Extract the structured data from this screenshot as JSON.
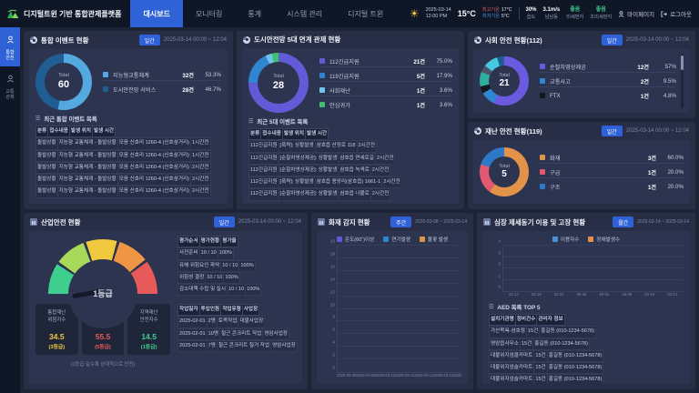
{
  "header": {
    "logo_title": "디지털트윈 기반 통합관제플랫폼",
    "nav": [
      {
        "label": "대시보드",
        "active": true
      },
      {
        "label": "모니터링",
        "active": false
      },
      {
        "label": "통계",
        "active": false
      },
      {
        "label": "시스템 관리",
        "active": false
      },
      {
        "label": "디지털 트윈",
        "active": false
      }
    ],
    "datetime": {
      "date": "2025-03-14",
      "time": "12:00 PM"
    },
    "weather": {
      "temp": "15°C",
      "high_label": "최고기온",
      "high": "17°C",
      "low_label": "최저기온",
      "low": "5°C",
      "humidity": "30%",
      "humidity_label": "습도",
      "wind": "3.1m/s",
      "wind_label": "남남동",
      "pm10_status": "좋음",
      "pm10_label": "미세먼지",
      "pm25_status": "좋음",
      "pm25_label": "초미세먼지",
      "good_color": "#3ecf8e"
    },
    "mypage_label": "마이페이지",
    "logout_label": "로그아웃"
  },
  "sidebar": {
    "items": [
      {
        "label": "통합안전",
        "active": true
      },
      {
        "label": "교통관제",
        "active": false
      }
    ]
  },
  "panels": {
    "integrated": {
      "title": "통합 이벤트 현황",
      "badge": "일간",
      "period": "2025-03-14 00:00 ~ 12:04",
      "total_label": "Total",
      "total": "60",
      "legend": [
        {
          "label": "지능형교통체계",
          "count": "32건",
          "pct": "53.3%",
          "color": "#54a9e0"
        },
        {
          "label": "도시안전망 서비스",
          "count": "28건",
          "pct": "46.7%",
          "color": "#1f5d93"
        }
      ],
      "list_title": "최근 통합 이벤트 목록",
      "table": {
        "headers": [
          "분류",
          "접수내용",
          "발생 위치",
          "발생 시간"
        ],
        "rows": [
          [
            "돌발상황",
            "지능형 교통체계 - 돌발상황",
            "모음 신호리 1260-4 (신호삼거리)",
            "1시간전"
          ],
          [
            "돌발상황",
            "지능형 교통체계 - 돌발상황",
            "모음 신호리 1260-4 (신호삼거리)",
            "1시간전"
          ],
          [
            "돌발상황",
            "지능형 교통체계 - 돌발상황",
            "모음 신호리 1260-4 (신호삼거리)",
            "2시간전"
          ],
          [
            "돌발상황",
            "지능형 교통체계 - 돌발상황",
            "모음 신호리 1260-4 (신호삼거리)",
            "2시간전"
          ],
          [
            "돌발상황",
            "지능형 교통체계 - 돌발상황",
            "모음 신호리 1260-4 (신호삼거리)",
            "2시간전"
          ]
        ]
      }
    },
    "citynet": {
      "title": "도시안전망 5대 연계 관제 현황",
      "total_label": "Total",
      "total": "28",
      "legend": [
        {
          "label": "112긴급지원",
          "count": "21건",
          "pct": "75.0%",
          "color": "#625bd8"
        },
        {
          "label": "119긴급지원",
          "count": "5건",
          "pct": "17.9%",
          "color": "#2e86d1"
        },
        {
          "label": "사회재난",
          "count": "1건",
          "pct": "3.6%",
          "color": "#6fc3ea"
        },
        {
          "label": "안심귀가",
          "count": "1건",
          "pct": "3.6%",
          "color": "#3fbf6e"
        }
      ],
      "list_title": "최근 5대 이벤트 목록",
      "table": {
        "headers": [
          "분류",
          "접수내용",
          "발생 위치",
          "발생 시간"
        ],
        "rows": [
          [
            "112긴급지원",
            "[폭력]: 상황발생",
            "삼호읍 산정로 118",
            "2시간전"
          ],
          [
            "112긴급지원",
            "[순찰차영상제공]: 상황발생",
            "삼호읍 연세로길",
            "2시간전"
          ],
          [
            "112긴급지원",
            "[순찰차영상제공]: 상황발생",
            "삼호읍 녹색로",
            "2시간전"
          ],
          [
            "112긴급지원",
            "[폭력]: 상황발생",
            "삼호읍 용앙리(삼호읍) 1661-1",
            "2시간전"
          ],
          [
            "112긴급지원",
            "[순찰차영상제공]: 상황발생",
            "삼호읍 나불로",
            "2시간전"
          ]
        ]
      }
    },
    "social112": {
      "title": "사회 안전 현황(112)",
      "badge": "일간",
      "period": "2025-03-14 00:00 ~ 12:04",
      "total_label": "Total",
      "total": "21",
      "legend": [
        {
          "label": "순찰차영상제공",
          "count": "12건",
          "pct": "57%",
          "color": "#6a5ae0"
        },
        {
          "label": "교통사고",
          "count": "2건",
          "pct": "9.5%",
          "color": "#2e86d1"
        },
        {
          "label": "FTX",
          "count": "1건",
          "pct": "4.8%",
          "color": "#15181f"
        }
      ]
    },
    "disaster119": {
      "title": "재난 안전 현황(119)",
      "badge": "일간",
      "period": "2025-03-14 00:00 ~ 12:04",
      "total_label": "Total",
      "total": "5",
      "legend": [
        {
          "label": "화재",
          "count": "3건",
          "pct": "60.0%",
          "color": "#e3924a"
        },
        {
          "label": "구급",
          "count": "1건",
          "pct": "20.0%",
          "color": "#e0596e"
        },
        {
          "label": "구조",
          "count": "1건",
          "pct": "20.0%",
          "color": "#2e78c8"
        }
      ]
    },
    "industry": {
      "title": "산업안전 현황",
      "badge": "일간",
      "period": "2025-03-14 00:00 ~ 12:04",
      "gauge_label": "1등급",
      "eval_table": {
        "headers": [
          "평가순서",
          "평가현황",
          "평가율"
        ],
        "rows": [
          [
            "사전준비",
            "10 / 10",
            "100%"
          ],
          [
            "유해 위험요인 파악",
            "10 / 10",
            "100%"
          ],
          [
            "위험성 결정",
            "10 / 10",
            "100%"
          ],
          [
            "감소대책 수립 및 실시",
            "10 / 10",
            "100%"
          ]
        ]
      },
      "cards": [
        {
          "label": "통합재난\n위험지수",
          "value": "34.5",
          "grade": "(3등급)",
          "color": "#f0c93f"
        },
        {
          "label": "산업안전\n위험지수",
          "value": "55.5",
          "grade": "(5등급)",
          "color": "#e85a5a"
        },
        {
          "label": "지역재난\n안전지수",
          "value": "14.5",
          "grade": "(1등급)",
          "color": "#3ecf8e"
        }
      ],
      "note": "(1등급 일수록 상대적으로 안전)",
      "work_table": {
        "headers": [
          "작업일자",
          "투입인원",
          "작업유형",
          "사업장"
        ],
        "rows": [
          [
            "2025-02-01",
            "2명",
            "토목작업",
            "대불사업장"
          ],
          [
            "2025-02-01",
            "10명",
            "철근 콘크리트 작업",
            "영암사업장"
          ],
          [
            "2025-02-01",
            "7명",
            "철근 콘크리트 철거 작업",
            "영암사업장"
          ]
        ]
      }
    },
    "fire": {
      "title": "화재 감지 현황",
      "badge": "주간",
      "period": "2025-03-08 ~ 2025-03-14"
    },
    "aed": {
      "title": "심장 제세동기 이용 및 고장 현황",
      "badge": "월간",
      "period": "2025-02-14 ~ 2025-03-14",
      "list_title": "AED 목록 TOP 5",
      "table": {
        "headers": [
          "설치기관명",
          "정비건수",
          "관리자 정보"
        ],
        "rows": [
          [
            "가산목욕-삼호점",
            "15건",
            "홍길동 (010-1234-5678)"
          ],
          [
            "영암읍사무소",
            "15건",
            "홍길동 (010-1234-5678)"
          ],
          [
            "대불위지엄클카마트",
            "15건",
            "홍길동 (010-1234-5678)"
          ],
          [
            "대불위지엄슬카마트",
            "15건",
            "홍길동 (010-1234-5678)"
          ],
          [
            "대불위지엄슬카마트",
            "15건",
            "홍길동 (010-1234-5678)"
          ]
        ]
      }
    }
  },
  "chart_data": {
    "integrated": {
      "type": "pie",
      "total": 60,
      "labels": [
        "지능형교통체계",
        "도시안전망 서비스"
      ],
      "segments": [
        {
          "v": 32,
          "c": "#54a9e0"
        },
        {
          "v": 28,
          "c": "#1f5d93"
        }
      ]
    },
    "citynet": {
      "type": "pie",
      "total": 28,
      "labels": [
        "112긴급지원",
        "119긴급지원",
        "사회재난",
        "안심귀가"
      ],
      "segments": [
        {
          "v": 21,
          "c": "#625bd8"
        },
        {
          "v": 5,
          "c": "#2e86d1"
        },
        {
          "v": 1,
          "c": "#6fc3ea"
        },
        {
          "v": 1,
          "c": "#3fbf6e"
        }
      ]
    },
    "social112": {
      "type": "pie",
      "total": 21,
      "labels": [
        "순찰차영상제공",
        "교통사고",
        "FTX"
      ],
      "segments": [
        {
          "v": 12,
          "c": "#6a5ae0"
        },
        {
          "v": 2,
          "c": "#2e86d1"
        },
        {
          "v": 1,
          "c": "#15181f"
        },
        {
          "v": 2,
          "c": "#2fae9d"
        },
        {
          "v": 1,
          "c": "#4b5568"
        },
        {
          "v": 2,
          "c": "#45c8e0"
        },
        {
          "v": 1,
          "c": "#1f5d93"
        }
      ]
    },
    "disaster119": {
      "type": "pie",
      "total": 5,
      "labels": [
        "화재",
        "구급",
        "구조"
      ],
      "segments": [
        {
          "v": 3,
          "c": "#e3924a"
        },
        {
          "v": 1,
          "c": "#e0596e"
        },
        {
          "v": 1,
          "c": "#2e78c8"
        }
      ]
    },
    "industry_gauge": {
      "type": "gauge",
      "label": "1등급",
      "segment_colors": [
        "#3ecf8e",
        "#a8d95a",
        "#f0c93f",
        "#ef9644",
        "#e85a5a"
      ]
    },
    "fire": {
      "type": "bar",
      "stacked": true,
      "ylim": [
        0,
        20
      ],
      "ytick": 2,
      "categories": [
        "2025-03-08",
        "2025-03-09",
        "2025-03-10",
        "2025-03-11",
        "2025-03-12",
        "2025-03-13",
        "2025-03-14"
      ],
      "series": [
        {
          "name": "온도(60˚)이상",
          "color": "#6458d8",
          "values": [
            8,
            6,
            7,
            8,
            5,
            4,
            3
          ]
        },
        {
          "name": "연기발생",
          "color": "#2e86d1",
          "values": [
            2,
            3,
            4,
            2,
            3,
            2,
            1
          ]
        },
        {
          "name": "불꽃 발생",
          "color": "#e3924a",
          "values": [
            5,
            3,
            1,
            4,
            3,
            2,
            3
          ]
        }
      ]
    },
    "aed": {
      "type": "bar",
      "stacked": false,
      "ylim": [
        0,
        4
      ],
      "ytick": 1,
      "categories": [
        "02-14",
        "02-18",
        "02-22",
        "02-26",
        "03-02",
        "03-06",
        "03-10",
        "03-14"
      ],
      "series": [
        {
          "name": "이용자수",
          "color": "#4a90d9",
          "values": [
            1,
            0,
            2,
            1,
            0,
            3,
            1,
            2
          ]
        },
        {
          "name": "장애발생수",
          "color": "#e3924a",
          "values": [
            0,
            1,
            0,
            1,
            2,
            0,
            1,
            1
          ]
        }
      ]
    }
  }
}
